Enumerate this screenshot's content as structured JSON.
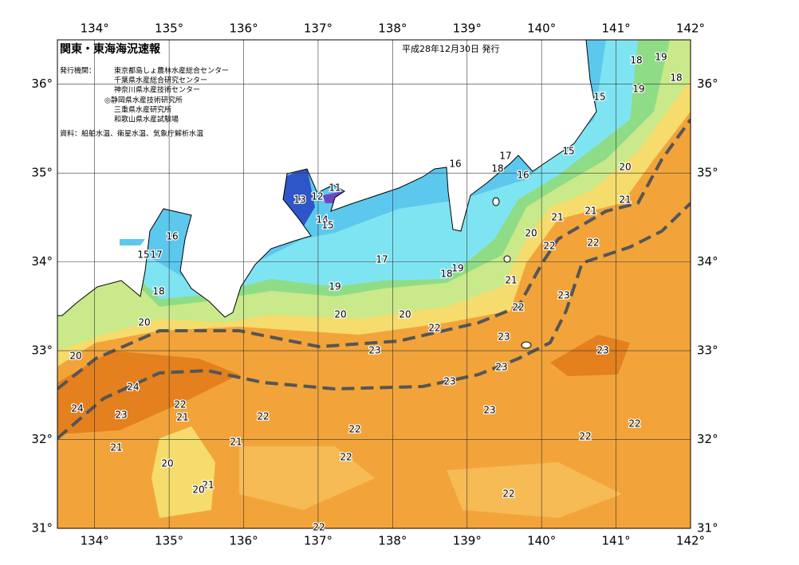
{
  "header": {
    "title": "関東・東海海況速報",
    "date": "平成28年12月30日 発行",
    "issuer_label": "発行機関：",
    "issuers": [
      "東京都島しょ農林水産総合センター",
      "千葉県水産総合研究センター",
      "神奈川県水産技術センター",
      "◎静岡県水産技術研究所",
      "三重県水産研究所",
      "和歌山県水産試験場"
    ],
    "source": "資料：船舶水温、衛星水温、気象庁解析水温"
  },
  "map": {
    "xlim": [
      133.5,
      142
    ],
    "ylim": [
      31,
      36.5
    ],
    "xticks": [
      {
        "value": 134,
        "label": "134°"
      },
      {
        "value": 135,
        "label": "135°"
      },
      {
        "value": 136,
        "label": "136°"
      },
      {
        "value": 137,
        "label": "137°"
      },
      {
        "value": 138,
        "label": "138°"
      },
      {
        "value": 139,
        "label": "139°"
      },
      {
        "value": 140,
        "label": "140°"
      },
      {
        "value": 141,
        "label": "141°"
      },
      {
        "value": 142,
        "label": "142°"
      }
    ],
    "yticks": [
      {
        "value": 31,
        "label": "31°"
      },
      {
        "value": 32,
        "label": "32°"
      },
      {
        "value": 33,
        "label": "33°"
      },
      {
        "value": 34,
        "label": "34°"
      },
      {
        "value": 35,
        "label": "35°"
      },
      {
        "value": 36,
        "label": "36°"
      }
    ],
    "grid": true,
    "contour_labels": [
      19,
      18,
      18,
      19,
      15,
      15,
      17,
      18,
      16,
      16,
      20,
      21,
      21,
      21,
      20,
      22,
      22,
      13,
      12,
      11,
      14,
      15,
      16,
      15,
      17,
      17,
      18,
      19,
      19,
      18,
      21,
      23,
      22,
      20,
      20,
      20,
      22,
      23,
      23,
      23,
      20,
      23,
      23,
      24,
      22,
      24,
      23,
      21,
      22,
      23,
      22,
      22,
      22,
      21,
      21,
      22,
      20,
      21,
      20,
      22,
      22
    ]
  }
}
